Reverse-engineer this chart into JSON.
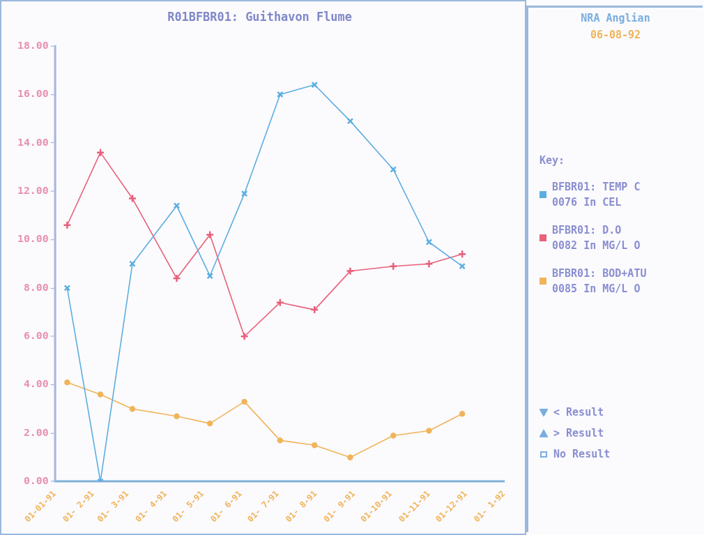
{
  "chart_data": {
    "type": "line",
    "title": "R01BFBR01: Guithavon Flume",
    "x": [
      "1991-01-11",
      "1991-02-07",
      "1991-03-05",
      "1991-04-10",
      "1991-05-07",
      "1991-06-04",
      "1991-07-03",
      "1991-07-31",
      "1991-08-29",
      "1991-10-03",
      "1991-11-01",
      "1991-11-28"
    ],
    "series": [
      {
        "name": "BFBR01: TEMP C\n0076 In CEL",
        "color": "#5aaee0",
        "marker": "cross",
        "values": [
          8.0,
          0.0,
          9.0,
          11.4,
          8.5,
          11.9,
          16.0,
          16.4,
          14.9,
          12.9,
          9.9,
          8.9
        ]
      },
      {
        "name": "BFBR01: D.O\n0082 In MG/L O",
        "color": "#e8607a",
        "marker": "plus",
        "values": [
          10.6,
          13.6,
          11.7,
          8.4,
          10.2,
          6.0,
          7.4,
          7.1,
          8.7,
          8.9,
          9.0,
          9.4
        ]
      },
      {
        "name": "BFBR01: BOD+ATU\n0085 In MG/L O",
        "color": "#f0b45a",
        "marker": "circle",
        "values": [
          4.1,
          3.6,
          3.0,
          2.7,
          2.4,
          3.3,
          1.7,
          1.5,
          1.0,
          1.9,
          2.1,
          2.8
        ]
      }
    ],
    "xlim": [
      "1991-01-01",
      "1992-01-01"
    ],
    "xticks": [
      {
        "value": "1991-01-01",
        "label": "01-01-91"
      },
      {
        "value": "1991-02-01",
        "label": "01- 2-91"
      },
      {
        "value": "1991-03-01",
        "label": "01- 3-91"
      },
      {
        "value": "1991-04-01",
        "label": "01- 4-91"
      },
      {
        "value": "1991-05-01",
        "label": "01- 5-91"
      },
      {
        "value": "1991-06-01",
        "label": "01- 6-91"
      },
      {
        "value": "1991-07-01",
        "label": "01- 7-91"
      },
      {
        "value": "1991-08-01",
        "label": "01- 8-91"
      },
      {
        "value": "1991-09-01",
        "label": "01- 9-91"
      },
      {
        "value": "1991-10-01",
        "label": "01-10-91"
      },
      {
        "value": "1991-11-01",
        "label": "01-11-91"
      },
      {
        "value": "1991-12-01",
        "label": "01-12-91"
      },
      {
        "value": "1992-01-01",
        "label": "01- 1-92"
      }
    ],
    "ylim": [
      0,
      18
    ],
    "yticks": [
      {
        "value": 0,
        "label": "0.00"
      },
      {
        "value": 2,
        "label": "2.00"
      },
      {
        "value": 4,
        "label": "4.00"
      },
      {
        "value": 6,
        "label": "6.00"
      },
      {
        "value": 8,
        "label": "8.00"
      },
      {
        "value": 10,
        "label": "10.00"
      },
      {
        "value": 12,
        "label": "12.00"
      },
      {
        "value": 14,
        "label": "14.00"
      },
      {
        "value": 16,
        "label": "16.00"
      },
      {
        "value": 18,
        "label": "18.00"
      }
    ],
    "grid": false,
    "legend": "right",
    "legend_title": "Key:",
    "annotations": [
      "NRA Anglian",
      "06-08-92",
      "< Result",
      "> Result",
      "No Result"
    ]
  }
}
